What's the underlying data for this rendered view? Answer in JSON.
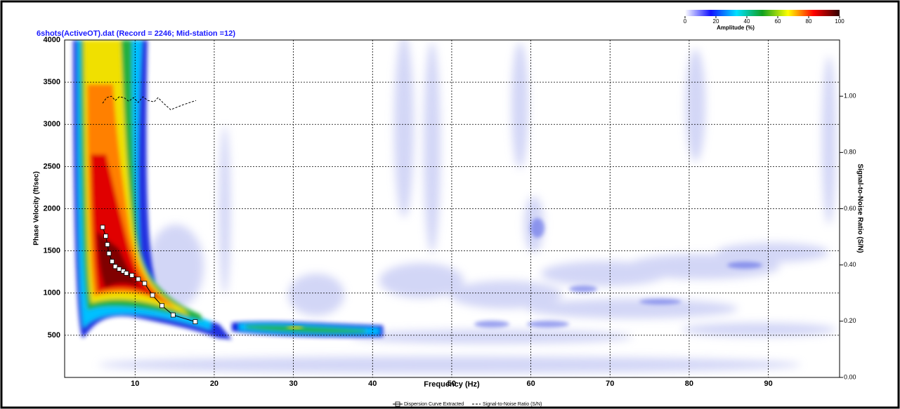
{
  "chart_data": {
    "type": "line",
    "title": "6shots(ActiveOT).dat  (Record = 2246; Mid-station =12)",
    "x_label": "Frequency (Hz)",
    "y_label": "Phase Velocity (ft/sec)",
    "y2_label": "Signal-to-Noise Ratio (S/N)",
    "xlim": [
      1.1,
      99
    ],
    "xticks": [
      10,
      20,
      30,
      40,
      50,
      60,
      70,
      80,
      90
    ],
    "ylim": [
      0,
      4000
    ],
    "yticks": [
      500,
      1000,
      1500,
      2000,
      2500,
      3000,
      3500,
      4000
    ],
    "y2lim": [
      0,
      1.2
    ],
    "y2ticks": [
      {
        "value": 0,
        "label": "0.00"
      },
      {
        "value": 0.2,
        "label": "0.20"
      },
      {
        "value": 0.4,
        "label": "0.40"
      },
      {
        "value": 0.6,
        "label": "0.60"
      },
      {
        "value": 0.8,
        "label": "0.80"
      },
      {
        "value": 1.0,
        "label": "1.00"
      }
    ],
    "grid": true,
    "series": [
      {
        "name": "Dispersion Curve Extracted",
        "color": "#000000",
        "x": [
          5.9,
          6.3,
          6.5,
          6.7,
          7.1,
          7.5,
          8.0,
          8.5,
          8.9,
          9.6,
          10.4,
          11.2,
          12.2,
          13.4,
          14.8,
          17.6
        ],
        "values": [
          1780,
          1675,
          1575,
          1470,
          1375,
          1315,
          1285,
          1260,
          1235,
          1210,
          1165,
          1115,
          975,
          850,
          740,
          660
        ]
      },
      {
        "name": "Signal-to-Noise Ratio (S/N)",
        "color": "#000000",
        "axis": "y2",
        "x": [
          5.9,
          6.4,
          7.0,
          7.5,
          8.0,
          8.6,
          9.2,
          9.8,
          10.4,
          11.0,
          11.6,
          12.4,
          12.9,
          13.6,
          14.5,
          16.1,
          17.7
        ],
        "values": [
          0.975,
          0.995,
          1.0,
          0.985,
          0.998,
          0.995,
          0.982,
          0.995,
          0.978,
          0.998,
          0.985,
          0.98,
          0.995,
          0.975,
          0.952,
          0.97,
          0.985
        ]
      }
    ],
    "colorbar": {
      "label": "Amplitude (%)",
      "lim": [
        0,
        100
      ],
      "ticks": [
        0,
        20,
        40,
        60,
        80,
        100
      ],
      "colors": [
        "#ffffff",
        "#1010ff",
        "#00e0ff",
        "#10a020",
        "#ffff00",
        "#ff0000",
        "#300000"
      ]
    }
  }
}
